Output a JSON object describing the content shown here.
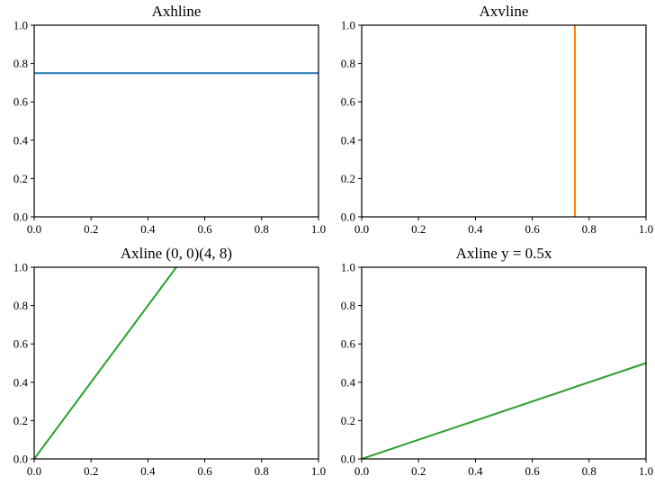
{
  "figure": {
    "background": "#ffffff",
    "rows": 2,
    "cols": 2
  },
  "chart_data": [
    {
      "type": "line",
      "title": "Axhline",
      "x": [
        0,
        1
      ],
      "y": [
        0.75,
        0.75
      ],
      "color": "#1f77b4",
      "xlim": [
        0,
        1
      ],
      "ylim": [
        0,
        1
      ],
      "xticks": [
        0,
        0.2,
        0.4,
        0.6,
        0.8,
        1
      ],
      "yticks": [
        0,
        0.2,
        0.4,
        0.6,
        0.8,
        1
      ],
      "xtick_labels": [
        "0.0",
        "0.2",
        "0.4",
        "0.6",
        "0.8",
        "1.0"
      ],
      "ytick_labels": [
        "0.0",
        "0.2",
        "0.4",
        "0.6",
        "0.8",
        "1.0"
      ],
      "xlabel": "",
      "ylabel": "",
      "grid": false,
      "legend": null
    },
    {
      "type": "line",
      "title": "Axvline",
      "x": [
        0.75,
        0.75
      ],
      "y": [
        0,
        1
      ],
      "color": "#ff7f0e",
      "xlim": [
        0,
        1
      ],
      "ylim": [
        0,
        1
      ],
      "xticks": [
        0,
        0.2,
        0.4,
        0.6,
        0.8,
        1
      ],
      "yticks": [
        0,
        0.2,
        0.4,
        0.6,
        0.8,
        1
      ],
      "xtick_labels": [
        "0.0",
        "0.2",
        "0.4",
        "0.6",
        "0.8",
        "1.0"
      ],
      "ytick_labels": [
        "0.0",
        "0.2",
        "0.4",
        "0.6",
        "0.8",
        "1.0"
      ],
      "xlabel": "",
      "ylabel": "",
      "grid": false,
      "legend": null
    },
    {
      "type": "line",
      "title": "Axline (0, 0)(4, 8)",
      "x": [
        0,
        0.5
      ],
      "y": [
        0,
        1
      ],
      "color": "#2ca02c",
      "xlim": [
        0,
        1
      ],
      "ylim": [
        0,
        1
      ],
      "xticks": [
        0,
        0.2,
        0.4,
        0.6,
        0.8,
        1
      ],
      "yticks": [
        0,
        0.2,
        0.4,
        0.6,
        0.8,
        1
      ],
      "xtick_labels": [
        "0.0",
        "0.2",
        "0.4",
        "0.6",
        "0.8",
        "1.0"
      ],
      "ytick_labels": [
        "0.0",
        "0.2",
        "0.4",
        "0.6",
        "0.8",
        "1.0"
      ],
      "xlabel": "",
      "ylabel": "",
      "grid": false,
      "legend": null
    },
    {
      "type": "line",
      "title": "Axline y = 0.5x",
      "x": [
        0,
        1
      ],
      "y": [
        0,
        0.5
      ],
      "color": "#2ca02c",
      "xlim": [
        0,
        1
      ],
      "ylim": [
        0,
        1
      ],
      "xticks": [
        0,
        0.2,
        0.4,
        0.6,
        0.8,
        1
      ],
      "yticks": [
        0,
        0.2,
        0.4,
        0.6,
        0.8,
        1
      ],
      "xtick_labels": [
        "0.0",
        "0.2",
        "0.4",
        "0.6",
        "0.8",
        "1.0"
      ],
      "ytick_labels": [
        "0.0",
        "0.2",
        "0.4",
        "0.6",
        "0.8",
        "1.0"
      ],
      "xlabel": "",
      "ylabel": "",
      "grid": false,
      "legend": null
    }
  ]
}
